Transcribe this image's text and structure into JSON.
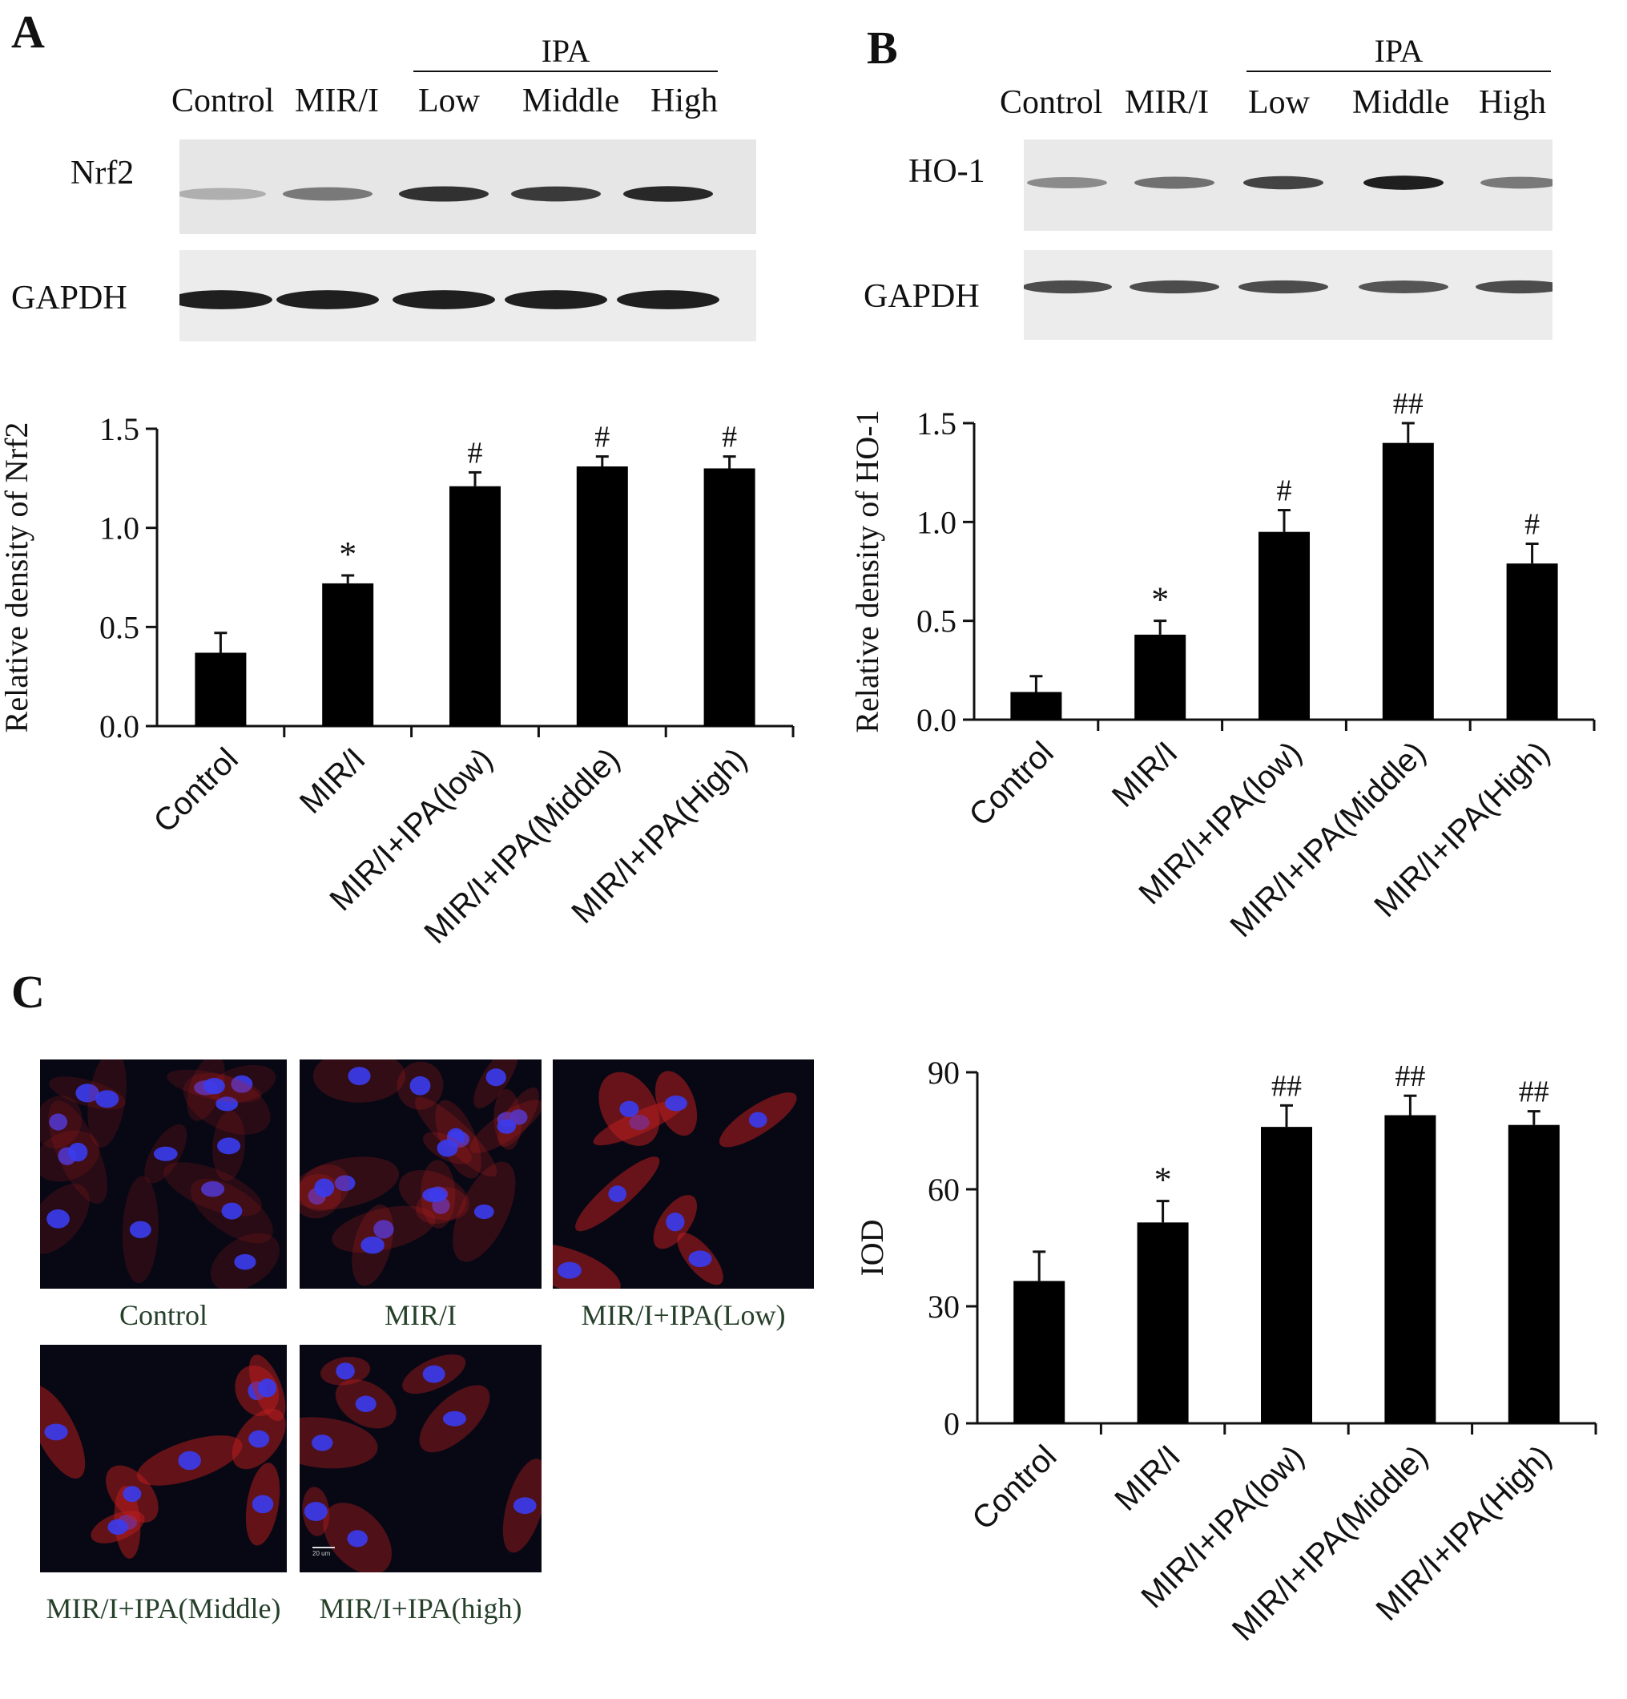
{
  "panels": {
    "A": {
      "letter": "A",
      "blot": {
        "group_label": "IPA",
        "lanes": [
          "Control",
          "MIR/I",
          "Low",
          "Middle",
          "High"
        ],
        "rows": [
          "Nrf2",
          "GAPDH"
        ],
        "band_intensity": {
          "Nrf2": [
            0.15,
            0.45,
            0.85,
            0.8,
            0.9
          ],
          "GAPDH": [
            0.95,
            0.95,
            0.95,
            0.95,
            0.95
          ]
        }
      }
    },
    "B": {
      "letter": "B",
      "blot": {
        "group_label": "IPA",
        "lanes": [
          "Control",
          "MIR/I",
          "Low",
          "Middle",
          "High"
        ],
        "rows": [
          "HO-1",
          "GAPDH"
        ],
        "band_intensity": {
          "HO-1": [
            0.35,
            0.5,
            0.75,
            0.95,
            0.45
          ],
          "GAPDH": [
            0.7,
            0.7,
            0.7,
            0.65,
            0.7
          ]
        }
      }
    },
    "C": {
      "letter": "C",
      "micrographs": [
        {
          "caption": "Control",
          "red_level": 0.1,
          "cells": 16
        },
        {
          "caption": "MIR/I",
          "red_level": 0.2,
          "cells": 18
        },
        {
          "caption": "MIR/I+IPA(Low)",
          "red_level": 0.75,
          "cells": 8
        },
        {
          "caption": "MIR/I+IPA(Middle)",
          "red_level": 0.7,
          "cells": 9
        },
        {
          "caption": "MIR/I+IPA(high)",
          "red_level": 0.5,
          "cells": 8
        }
      ],
      "scale_bar_label": "20 um"
    }
  },
  "chart_data": [
    {
      "id": "A",
      "type": "bar",
      "categories": [
        "Control",
        "MIR/I",
        "MIR/I+IPA(low)",
        "MIR/I+IPA(Middle)",
        "MIR/I+IPA(High)"
      ],
      "values": [
        0.37,
        0.72,
        1.21,
        1.31,
        1.3
      ],
      "errors": [
        0.1,
        0.04,
        0.07,
        0.05,
        0.06
      ],
      "annotations": [
        "",
        "*",
        "#",
        "#",
        "#"
      ],
      "ylabel": "Relative density of Nrf2",
      "ylim": [
        0,
        1.5
      ],
      "yticks": [
        "0.0",
        "0.5",
        "1.0",
        "1.5"
      ],
      "color": "#000000"
    },
    {
      "id": "B",
      "type": "bar",
      "categories": [
        "Control",
        "MIR/I",
        "MIR/I+IPA(low)",
        "MIR/I+IPA(Middle)",
        "MIR/I+IPA(High)"
      ],
      "values": [
        0.14,
        0.43,
        0.95,
        1.4,
        0.79
      ],
      "errors": [
        0.08,
        0.07,
        0.11,
        0.1,
        0.1
      ],
      "annotations": [
        "",
        "*",
        "#",
        "##",
        "#"
      ],
      "ylabel": "Relative density of HO-1",
      "ylim": [
        0,
        1.5
      ],
      "yticks": [
        "0.0",
        "0.5",
        "1.0",
        "1.5"
      ],
      "color": "#000000"
    },
    {
      "id": "C",
      "type": "bar",
      "categories": [
        "Control",
        "MIR/I",
        "MIR/I+IPA(low)",
        "MIR/I+IPA(Middle)",
        "MIR/I+IPA(High)"
      ],
      "values": [
        36.5,
        51.5,
        76,
        79,
        76.5
      ],
      "errors": [
        7.5,
        5.5,
        5.5,
        5,
        3.5
      ],
      "annotations": [
        "",
        "*",
        "##",
        "##",
        "##"
      ],
      "ylabel": "IOD",
      "ylim": [
        0,
        90
      ],
      "yticks": [
        "0",
        "30",
        "60",
        "90"
      ],
      "color": "#000000"
    }
  ]
}
